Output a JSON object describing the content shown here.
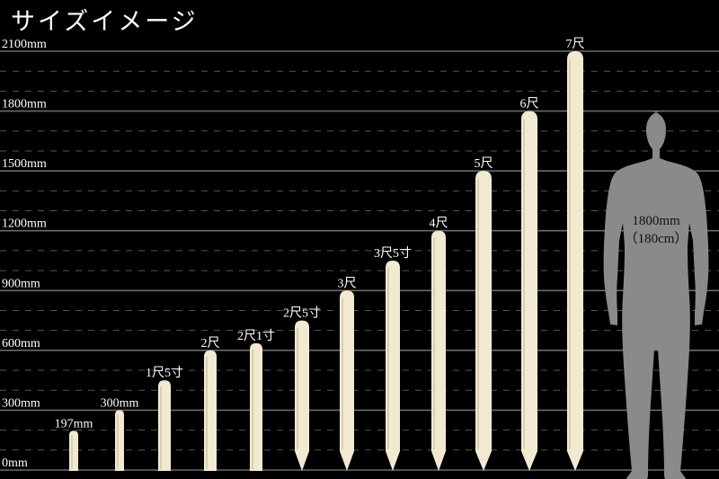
{
  "title": "サイズイメージ",
  "chart_data": {
    "type": "bar",
    "ylim": [
      0,
      2100
    ],
    "yunit": "mm",
    "y_ticks": [
      0,
      300,
      600,
      900,
      1200,
      1500,
      1800,
      2100
    ],
    "y_tick_labels": [
      "0mm",
      "300mm",
      "600mm",
      "900mm",
      "1200mm",
      "1500mm",
      "1800mm",
      "2100mm"
    ],
    "grid": "solid every 300mm, dashed every 100mm",
    "categories": [
      "197mm",
      "300mm",
      "1尺5寸",
      "2尺",
      "2尺1寸",
      "2尺5寸",
      "3尺",
      "3尺5寸",
      "4尺",
      "5尺",
      "6尺",
      "7尺"
    ],
    "values": [
      197,
      300,
      450,
      600,
      636,
      750,
      900,
      1050,
      1200,
      1500,
      1800,
      2100
    ],
    "bar_color": "#f2ead0",
    "reference": {
      "label_line1": "1800mm",
      "label_line2": "（180cm）",
      "value": 1800,
      "color": "#8a8a8a"
    }
  }
}
